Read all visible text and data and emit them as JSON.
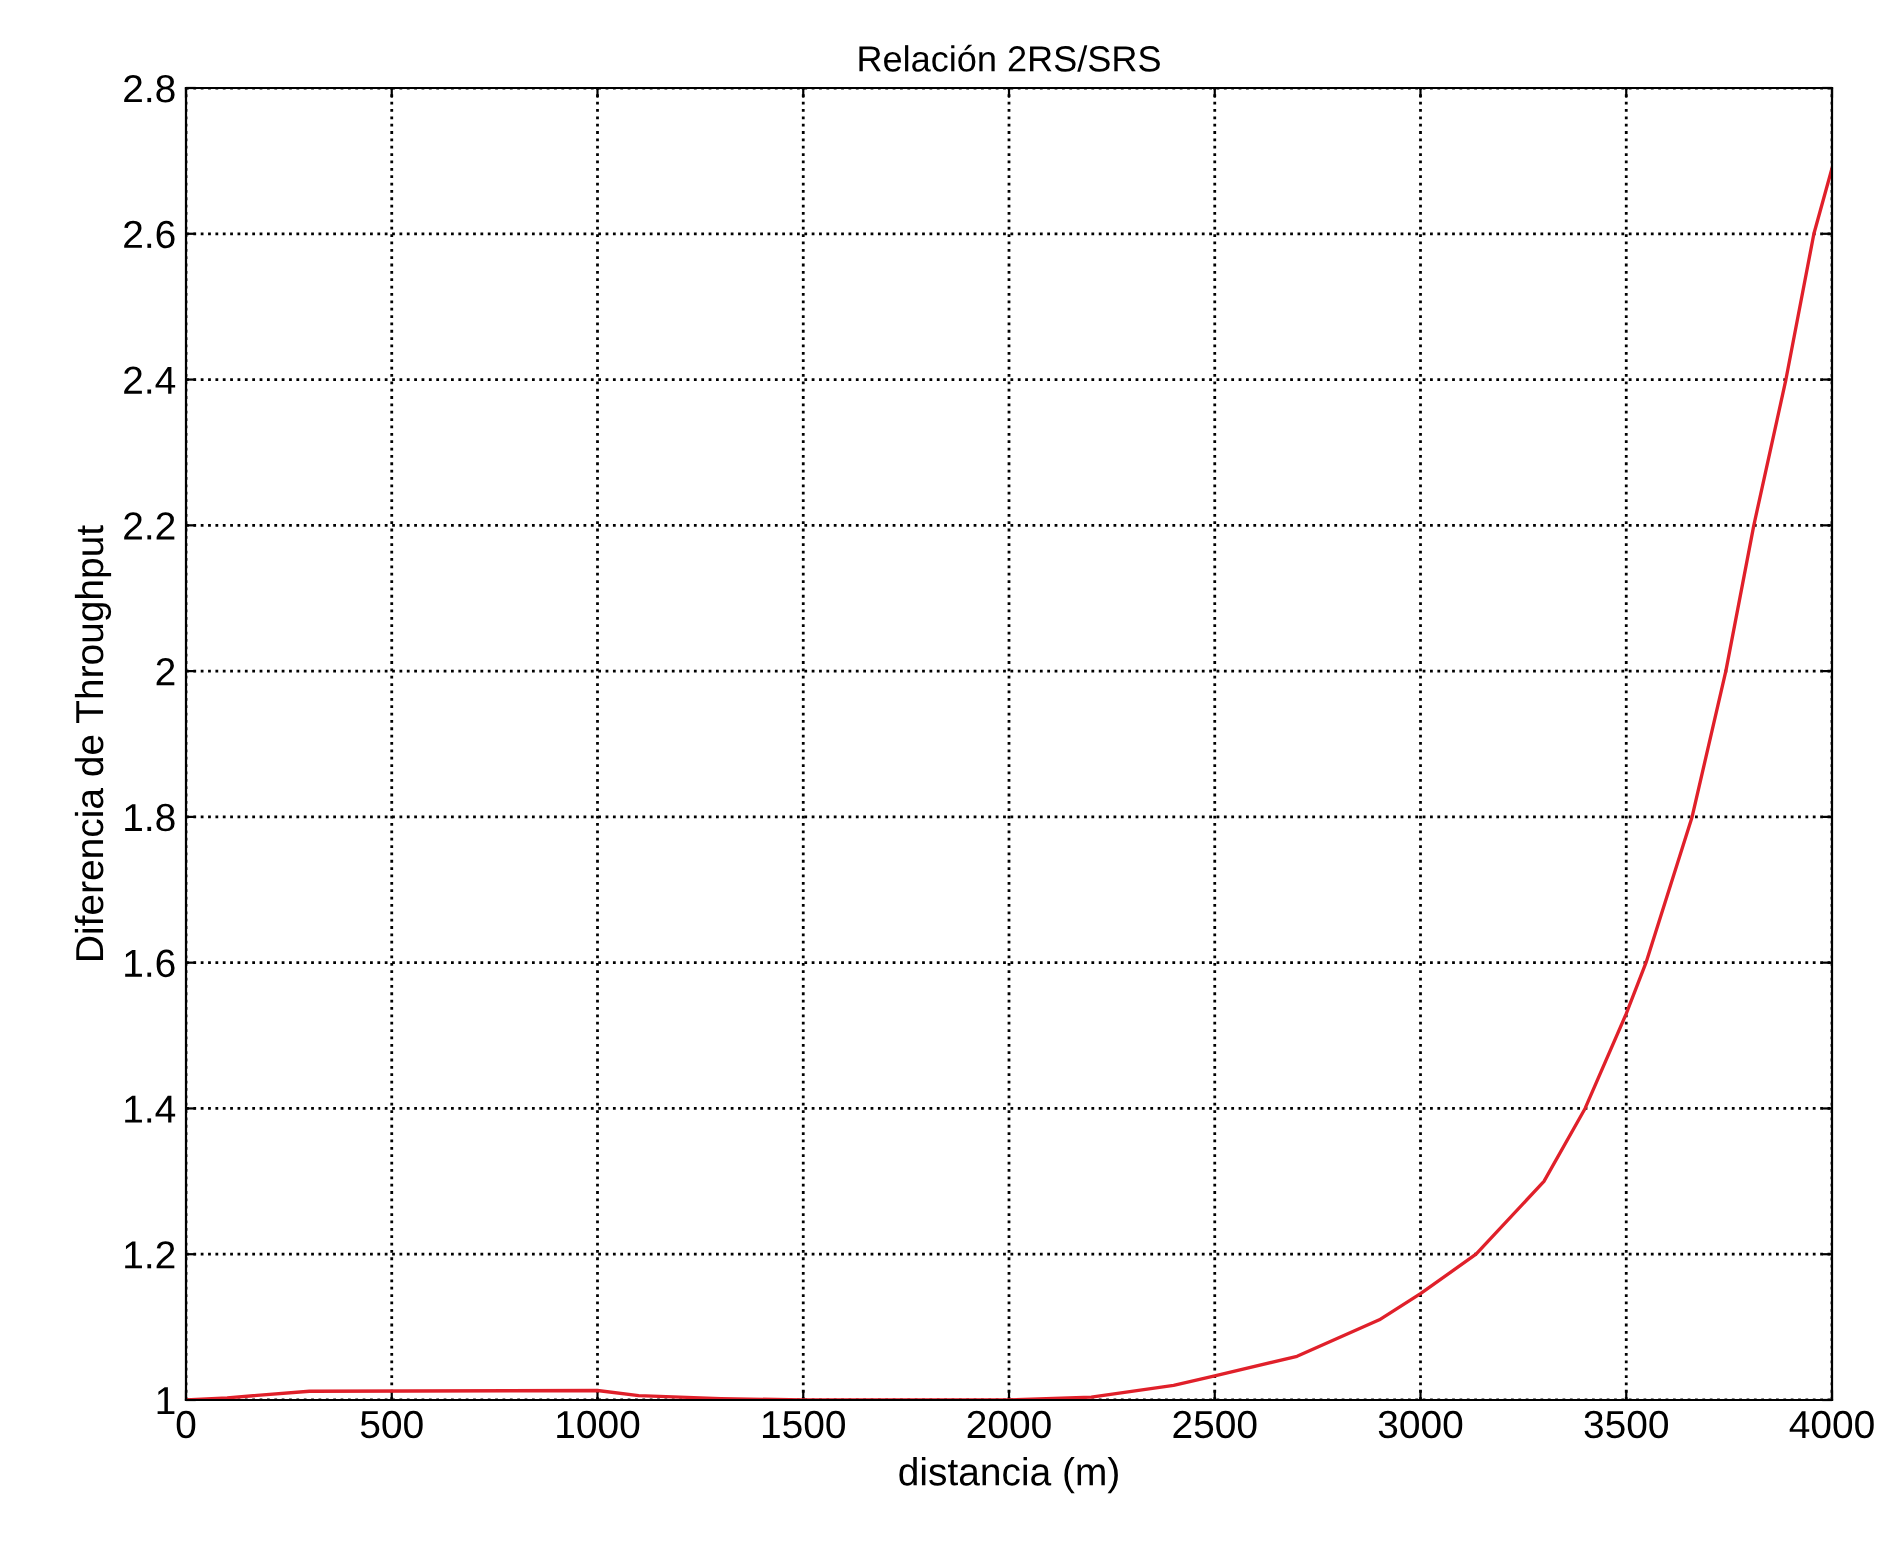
{
  "chart_data": {
    "type": "line",
    "title": "Relación 2RS/SRS",
    "xlabel": "distancia (m)",
    "ylabel": "Diferencia de Throughput",
    "x": [
      0,
      100,
      300,
      1000,
      1100,
      1300,
      1500,
      2000,
      2200,
      2400,
      2500,
      2700,
      2900,
      3000,
      3135,
      3300,
      3400,
      3500,
      3548,
      3660,
      3742,
      3810,
      3888,
      3956,
      4000
    ],
    "series": [
      {
        "color": "#e0202a",
        "values": [
          1.0,
          1.003,
          1.012,
          1.013,
          1.006,
          1.002,
          1.0,
          1.0,
          1.004,
          1.02,
          1.033,
          1.06,
          1.11,
          1.146,
          1.2,
          1.3,
          1.4,
          1.53,
          1.6,
          1.8,
          2.0,
          2.2,
          2.4,
          2.6,
          2.69
        ]
      }
    ],
    "xlim": [
      0,
      4000
    ],
    "xticks": [
      0,
      500,
      1000,
      1500,
      2000,
      2500,
      3000,
      3500,
      4000
    ],
    "ylim": [
      1,
      2.8
    ],
    "yticks": [
      1,
      1.2,
      1.4,
      1.6,
      1.8,
      2,
      2.2,
      2.4,
      2.6,
      2.8
    ],
    "grid": true,
    "marker": "none",
    "line_style": "solid"
  }
}
